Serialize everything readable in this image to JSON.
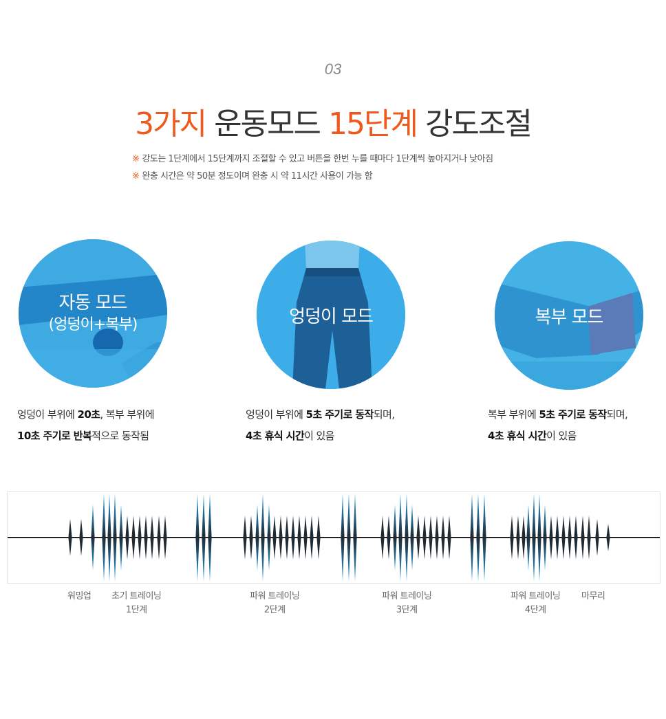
{
  "section_number": "03",
  "headline": {
    "part1": "3가지",
    "part2": " 운동모드 ",
    "part3": "15단계",
    "part4": " 강도조절"
  },
  "notes": {
    "mark": "※",
    "line1": "강도는 1단계에서 15단계까지 조절할 수 있고 버튼을 한번 누를 때마다 1단계씩 높아지거나 낮아짐",
    "line2": "완충 시간은 약 50분 정도이며 완충 시 약 11시간 사용이 가능 함"
  },
  "modes": [
    {
      "title": "자동 모드",
      "subtitle": "(엉덩이+복부)",
      "desc_line1": {
        "t1": "엉덩이 부위에 ",
        "b1": "20초",
        "t2": ", 복부 부위에"
      },
      "desc_line2": {
        "b1": "10초 주기로 반복",
        "t1": "적으로 동작됨"
      }
    },
    {
      "title": "엉덩이 모드",
      "desc_line1": {
        "t1": "엉덩이 부위에 ",
        "b1": "5초 주기로 동작",
        "t2": "되며,"
      },
      "desc_line2": {
        "b1": "4초 휴식 시간",
        "t1": "이 있음"
      }
    },
    {
      "title": "복부 모드",
      "desc_line1": {
        "t1": "복부 부위에 ",
        "b1": "5초 주기로 동작",
        "t2": "되며,"
      },
      "desc_line2": {
        "b1": "4초 휴식 시간",
        "t1": "이 있음"
      }
    }
  ],
  "stages": [
    {
      "line1": "워밍업",
      "line2": ""
    },
    {
      "line1": "초기 트레이닝",
      "line2": "1단계"
    },
    {
      "line1": "파워 트레이닝",
      "line2": "2단계"
    },
    {
      "line1": "파워 트레이닝",
      "line2": "3단계"
    },
    {
      "line1": "파워 트레이닝",
      "line2": "4단계"
    },
    {
      "line1": "마무리",
      "line2": ""
    }
  ],
  "colors": {
    "accent": "#ee5a1d",
    "circle_blue": "#40aee6",
    "wave_dark": "#1f2a33",
    "wave_blue": "#2a9ee0"
  }
}
